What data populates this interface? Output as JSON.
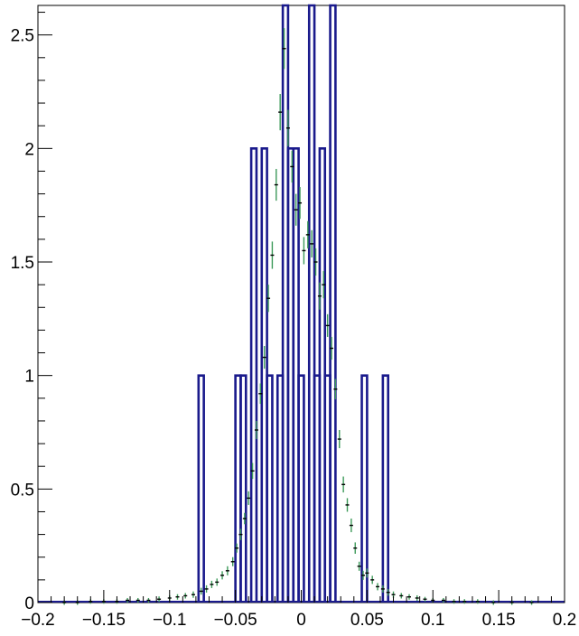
{
  "chart_data": {
    "type": "histogram",
    "title": "",
    "xlabel": "",
    "ylabel": "",
    "xlim": [
      -0.2,
      0.2
    ],
    "ylim": [
      0,
      2.63
    ],
    "grid": false,
    "x_ticks": [
      {
        "value": -0.2,
        "label": "−0.2"
      },
      {
        "value": -0.15,
        "label": "−0.15"
      },
      {
        "value": -0.1,
        "label": "−0.1"
      },
      {
        "value": -0.05,
        "label": "−0.05"
      },
      {
        "value": 0,
        "label": "0"
      },
      {
        "value": 0.05,
        "label": "0.05"
      },
      {
        "value": 0.1,
        "label": "0.1"
      },
      {
        "value": 0.15,
        "label": "0.15"
      },
      {
        "value": 0.2,
        "label": "0.2"
      }
    ],
    "y_ticks": [
      {
        "value": 0,
        "label": "0"
      },
      {
        "value": 0.5,
        "label": "0.5"
      },
      {
        "value": 1,
        "label": "1"
      },
      {
        "value": 1.5,
        "label": "1.5"
      },
      {
        "value": 2,
        "label": "2"
      },
      {
        "value": 2.5,
        "label": "2.5"
      }
    ],
    "colors": {
      "histogram": "#1a1a8c",
      "points": "#000000",
      "error_bars": "#3d9a5a"
    },
    "series": [
      {
        "kind": "step-histogram",
        "color": "#1a1a8c",
        "bin_width": 0.004,
        "bins": [
          {
            "x0": -0.078,
            "y": 1
          },
          {
            "x0": -0.05,
            "y": 1
          },
          {
            "x0": -0.046,
            "y": 1
          },
          {
            "x0": -0.038,
            "y": 2
          },
          {
            "x0": -0.03,
            "y": 2
          },
          {
            "x0": -0.026,
            "y": 1
          },
          {
            "x0": -0.018,
            "y": 1
          },
          {
            "x0": -0.014,
            "y": 2.63
          },
          {
            "x0": -0.01,
            "y": 2
          },
          {
            "x0": -0.006,
            "y": 2
          },
          {
            "x0": -0.002,
            "y": 1
          },
          {
            "x0": 0.006,
            "y": 2.63
          },
          {
            "x0": 0.01,
            "y": 1
          },
          {
            "x0": 0.014,
            "y": 2
          },
          {
            "x0": 0.018,
            "y": 1
          },
          {
            "x0": 0.022,
            "y": 2.63
          },
          {
            "x0": 0.046,
            "y": 1
          },
          {
            "x0": 0.062,
            "y": 1
          }
        ]
      },
      {
        "kind": "points-with-errors",
        "color": "#000000",
        "error_color": "#3d9a5a",
        "points": [
          {
            "x": -0.18,
            "y": 0.0,
            "e": 0.01
          },
          {
            "x": -0.17,
            "y": 0.0,
            "e": 0.01
          },
          {
            "x": -0.16,
            "y": 0.005,
            "e": 0.01
          },
          {
            "x": -0.15,
            "y": 0.005,
            "e": 0.01
          },
          {
            "x": -0.14,
            "y": 0.005,
            "e": 0.01
          },
          {
            "x": -0.132,
            "y": 0.01,
            "e": 0.01
          },
          {
            "x": -0.124,
            "y": 0.01,
            "e": 0.01
          },
          {
            "x": -0.116,
            "y": 0.01,
            "e": 0.01
          },
          {
            "x": -0.108,
            "y": 0.015,
            "e": 0.012
          },
          {
            "x": -0.1,
            "y": 0.02,
            "e": 0.012
          },
          {
            "x": -0.094,
            "y": 0.025,
            "e": 0.012
          },
          {
            "x": -0.088,
            "y": 0.03,
            "e": 0.012
          },
          {
            "x": -0.082,
            "y": 0.035,
            "e": 0.014
          },
          {
            "x": -0.076,
            "y": 0.05,
            "e": 0.015
          },
          {
            "x": -0.072,
            "y": 0.06,
            "e": 0.016
          },
          {
            "x": -0.068,
            "y": 0.08,
            "e": 0.016
          },
          {
            "x": -0.064,
            "y": 0.09,
            "e": 0.016
          },
          {
            "x": -0.06,
            "y": 0.12,
            "e": 0.018
          },
          {
            "x": -0.056,
            "y": 0.14,
            "e": 0.02
          },
          {
            "x": -0.052,
            "y": 0.18,
            "e": 0.02
          },
          {
            "x": -0.049,
            "y": 0.24,
            "e": 0.02
          },
          {
            "x": -0.046,
            "y": 0.3,
            "e": 0.025
          },
          {
            "x": -0.043,
            "y": 0.37,
            "e": 0.025
          },
          {
            "x": -0.04,
            "y": 0.46,
            "e": 0.03
          },
          {
            "x": -0.037,
            "y": 0.58,
            "e": 0.035
          },
          {
            "x": -0.034,
            "y": 0.76,
            "e": 0.04
          },
          {
            "x": -0.031,
            "y": 0.92,
            "e": 0.045
          },
          {
            "x": -0.028,
            "y": 1.08,
            "e": 0.05
          },
          {
            "x": -0.025,
            "y": 1.34,
            "e": 0.06
          },
          {
            "x": -0.022,
            "y": 1.53,
            "e": 0.06
          },
          {
            "x": -0.019,
            "y": 1.84,
            "e": 0.07
          },
          {
            "x": -0.016,
            "y": 2.16,
            "e": 0.08
          },
          {
            "x": -0.013,
            "y": 2.44,
            "e": 0.09
          },
          {
            "x": -0.01,
            "y": 2.09,
            "e": 0.08
          },
          {
            "x": -0.007,
            "y": 1.92,
            "e": 0.07
          },
          {
            "x": -0.004,
            "y": 1.73,
            "e": 0.07
          },
          {
            "x": -0.001,
            "y": 1.76,
            "e": 0.07
          },
          {
            "x": 0.002,
            "y": 1.55,
            "e": 0.06
          },
          {
            "x": 0.005,
            "y": 1.62,
            "e": 0.06
          },
          {
            "x": 0.008,
            "y": 1.58,
            "e": 0.06
          },
          {
            "x": 0.011,
            "y": 1.5,
            "e": 0.06
          },
          {
            "x": 0.014,
            "y": 1.35,
            "e": 0.06
          },
          {
            "x": 0.017,
            "y": 1.4,
            "e": 0.06
          },
          {
            "x": 0.02,
            "y": 1.22,
            "e": 0.05
          },
          {
            "x": 0.023,
            "y": 1.12,
            "e": 0.05
          },
          {
            "x": 0.026,
            "y": 0.94,
            "e": 0.045
          },
          {
            "x": 0.029,
            "y": 0.72,
            "e": 0.04
          },
          {
            "x": 0.032,
            "y": 0.52,
            "e": 0.035
          },
          {
            "x": 0.035,
            "y": 0.43,
            "e": 0.03
          },
          {
            "x": 0.038,
            "y": 0.34,
            "e": 0.03
          },
          {
            "x": 0.041,
            "y": 0.24,
            "e": 0.025
          },
          {
            "x": 0.044,
            "y": 0.16,
            "e": 0.02
          },
          {
            "x": 0.047,
            "y": 0.12,
            "e": 0.02
          },
          {
            "x": 0.05,
            "y": 0.13,
            "e": 0.02
          },
          {
            "x": 0.054,
            "y": 0.1,
            "e": 0.018
          },
          {
            "x": 0.058,
            "y": 0.07,
            "e": 0.016
          },
          {
            "x": 0.062,
            "y": 0.06,
            "e": 0.016
          },
          {
            "x": 0.066,
            "y": 0.045,
            "e": 0.015
          },
          {
            "x": 0.07,
            "y": 0.035,
            "e": 0.014
          },
          {
            "x": 0.076,
            "y": 0.03,
            "e": 0.012
          },
          {
            "x": 0.082,
            "y": 0.025,
            "e": 0.012
          },
          {
            "x": 0.088,
            "y": 0.02,
            "e": 0.012
          },
          {
            "x": 0.094,
            "y": 0.015,
            "e": 0.01
          },
          {
            "x": 0.1,
            "y": 0.01,
            "e": 0.01
          },
          {
            "x": 0.108,
            "y": 0.01,
            "e": 0.01
          },
          {
            "x": 0.116,
            "y": 0.005,
            "e": 0.01
          },
          {
            "x": 0.124,
            "y": 0.005,
            "e": 0.01
          },
          {
            "x": 0.134,
            "y": 0.005,
            "e": 0.01
          },
          {
            "x": 0.146,
            "y": 0.0,
            "e": 0.01
          },
          {
            "x": 0.16,
            "y": 0.0,
            "e": 0.01
          },
          {
            "x": 0.175,
            "y": 0.0,
            "e": 0.01
          }
        ]
      }
    ]
  }
}
